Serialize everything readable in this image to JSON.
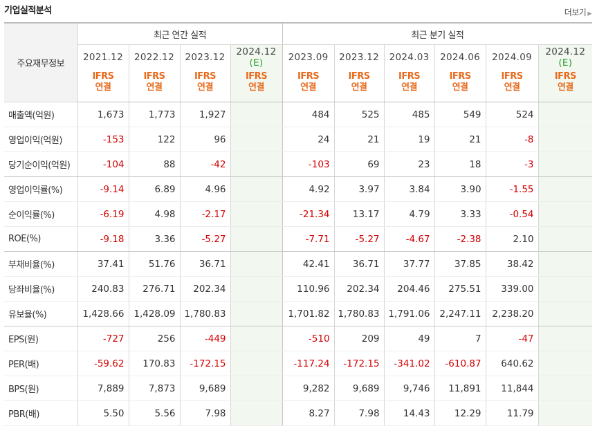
{
  "header": {
    "title": "기업실적분석",
    "more_label": "더보기",
    "more_icon": "triangle-right-icon"
  },
  "table": {
    "row_header_label": "주요재무정보",
    "group_annual": "최근 연간 실적",
    "group_quarter": "최근 분기 실적",
    "periods": [
      {
        "line1": "2021.12",
        "estimate": false
      },
      {
        "line1": "2022.12",
        "estimate": false
      },
      {
        "line1": "2023.12",
        "estimate": false
      },
      {
        "line1": "2024.12",
        "line2": "(E)",
        "estimate": true
      },
      {
        "line1": "2023.09",
        "estimate": false
      },
      {
        "line1": "2023.12",
        "estimate": false
      },
      {
        "line1": "2024.03",
        "estimate": false
      },
      {
        "line1": "2024.06",
        "estimate": false
      },
      {
        "line1": "2024.09",
        "estimate": false
      },
      {
        "line1": "2024.12",
        "line2": "(E)",
        "estimate": true
      }
    ],
    "standard_line1": "IFRS",
    "standard_line2": "연결",
    "rows": [
      {
        "label": "매출액(억원)",
        "values": [
          "1,673",
          "1,773",
          "1,927",
          "",
          "484",
          "525",
          "485",
          "549",
          "524",
          ""
        ]
      },
      {
        "label": "영업이익(억원)",
        "values": [
          "-153",
          "122",
          "96",
          "",
          "24",
          "21",
          "19",
          "21",
          "-8",
          ""
        ]
      },
      {
        "label": "당기순이익(억원)",
        "values": [
          "-104",
          "88",
          "-42",
          "",
          "-103",
          "69",
          "23",
          "18",
          "-3",
          ""
        ]
      },
      {
        "label": "영업이익률(%)",
        "values": [
          "-9.14",
          "6.89",
          "4.96",
          "",
          "4.92",
          "3.97",
          "3.84",
          "3.90",
          "-1.55",
          ""
        ]
      },
      {
        "label": "순이익률(%)",
        "values": [
          "-6.19",
          "4.98",
          "-2.17",
          "",
          "-21.34",
          "13.17",
          "4.79",
          "3.33",
          "-0.54",
          ""
        ]
      },
      {
        "label": "ROE(%)",
        "values": [
          "-9.18",
          "3.36",
          "-5.27",
          "",
          "-7.71",
          "-5.27",
          "-4.67",
          "-2.38",
          "2.10",
          ""
        ]
      },
      {
        "label": "부채비율(%)",
        "values": [
          "37.41",
          "51.76",
          "36.71",
          "",
          "42.41",
          "36.71",
          "37.77",
          "37.85",
          "38.42",
          ""
        ]
      },
      {
        "label": "당좌비율(%)",
        "values": [
          "240.83",
          "276.71",
          "202.34",
          "",
          "110.96",
          "202.34",
          "204.46",
          "275.51",
          "339.00",
          ""
        ]
      },
      {
        "label": "유보율(%)",
        "values": [
          "1,428.66",
          "1,428.09",
          "1,780.83",
          "",
          "1,701.82",
          "1,780.83",
          "1,791.06",
          "2,247.11",
          "2,238.20",
          ""
        ]
      },
      {
        "label": "EPS(원)",
        "values": [
          "-727",
          "256",
          "-449",
          "",
          "-510",
          "209",
          "49",
          "7",
          "-47",
          ""
        ]
      },
      {
        "label": "PER(배)",
        "values": [
          "-59.62",
          "170.83",
          "-172.15",
          "",
          "-117.24",
          "-172.15",
          "-341.02",
          "-610.87",
          "640.62",
          ""
        ]
      },
      {
        "label": "BPS(원)",
        "values": [
          "7,889",
          "7,873",
          "9,689",
          "",
          "9,282",
          "9,689",
          "9,746",
          "11,891",
          "11,844",
          ""
        ]
      },
      {
        "label": "PBR(배)",
        "values": [
          "5.50",
          "5.56",
          "7.98",
          "",
          "8.27",
          "7.98",
          "14.43",
          "12.29",
          "11.79",
          ""
        ]
      }
    ]
  },
  "colors": {
    "negative": "#d30000",
    "ifrs": "#e86a1c",
    "estimate": "#2b9d2b",
    "estimate_bg": "#f2f8f0"
  }
}
